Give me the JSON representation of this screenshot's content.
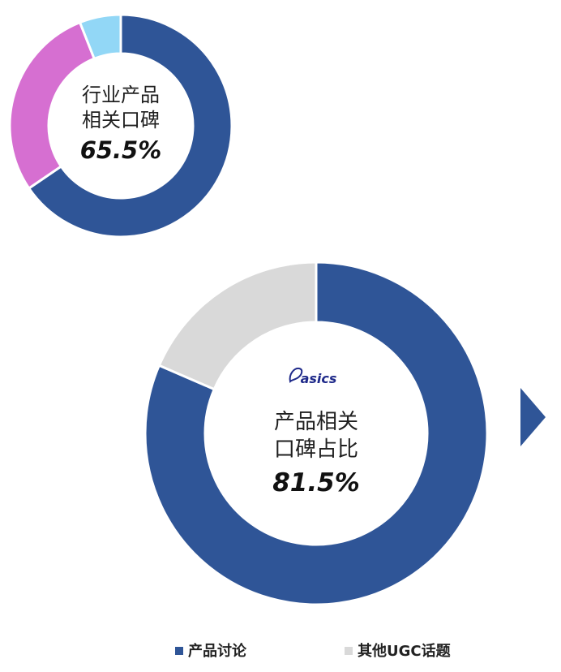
{
  "chart_data": [
    {
      "type": "pie",
      "center_label_lines": [
        "行业产品",
        "相关口碑"
      ],
      "center_value": "65.5%",
      "slices": [
        {
          "value": 65.5,
          "color": "#2f5597"
        },
        {
          "value": 28.5,
          "color": "#d66fd1"
        },
        {
          "value": 6.0,
          "color": "#92d7f6"
        }
      ]
    },
    {
      "type": "pie",
      "brand": "asics",
      "center_label_lines": [
        "产品相关",
        "口碑占比"
      ],
      "center_value": "81.5%",
      "slices": [
        {
          "name": "产品讨论",
          "value": 81.5,
          "color": "#2f5597"
        },
        {
          "name": "其他UGC话题",
          "value": 18.5,
          "color": "#d9d9d9"
        }
      ],
      "legend": {
        "position": "bottom",
        "items": [
          {
            "label": "产品讨论",
            "color": "#2f5597"
          },
          {
            "label": "其他UGC话题",
            "color": "#d9d9d9"
          }
        ]
      }
    }
  ],
  "decor": {
    "arrow_color": "#2f5597",
    "arrow_icon": "triangle-right-icon"
  }
}
